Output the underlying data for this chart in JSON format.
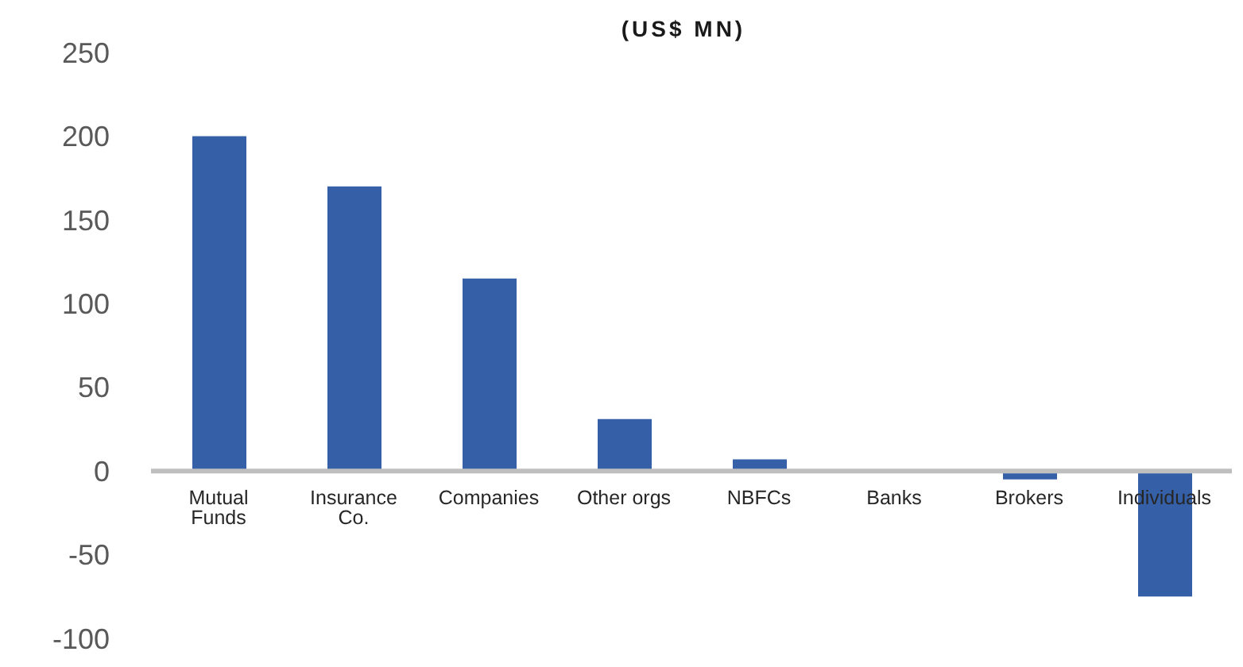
{
  "chart_data": {
    "type": "bar",
    "title": "(US$ MN)",
    "categories": [
      "Mutual Funds",
      "Insurance Co.",
      "Companies",
      "Other orgs",
      "NBFCs",
      "Banks",
      "Brokers",
      "Individuals"
    ],
    "values": [
      200,
      170,
      115,
      31,
      7,
      0,
      -5,
      -75
    ],
    "color": "#3560a8",
    "ylim": [
      -100,
      250
    ],
    "yticks": [
      -100,
      -50,
      0,
      50,
      100,
      150,
      200,
      250
    ],
    "grid": false,
    "legend": false
  }
}
